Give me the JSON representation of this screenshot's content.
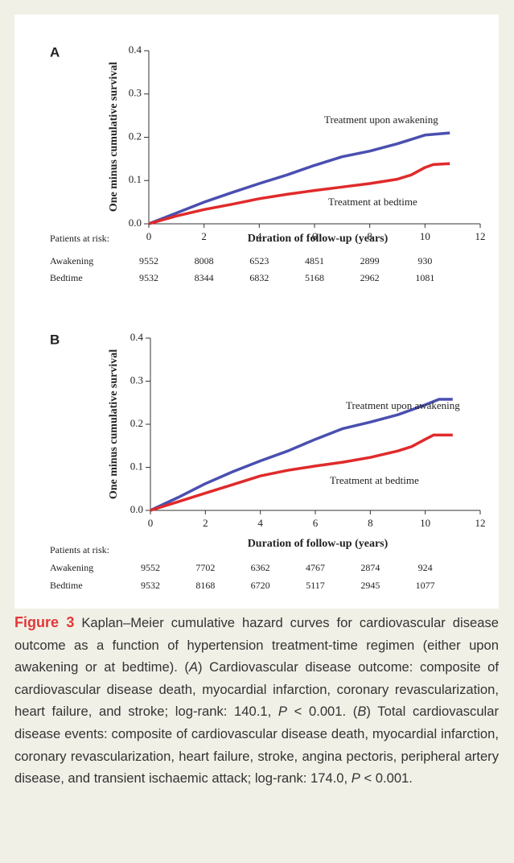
{
  "chart_data": [
    {
      "type": "line",
      "panel_label": "A",
      "y_label": "One minus cumulative survival",
      "x_label": "Duration of follow-up (years)",
      "xlim": [
        0,
        12
      ],
      "xticks": [
        0,
        2,
        4,
        6,
        8,
        10,
        12
      ],
      "ylim": [
        0,
        0.4
      ],
      "yticks": [
        {
          "value": 0,
          "label": "0.0"
        },
        0.1,
        0.2,
        0.3,
        0.4
      ],
      "series": [
        {
          "name": "Treatment upon awakening",
          "color": "#4a4fb0",
          "x": [
            0,
            1,
            2,
            3,
            4,
            5,
            6,
            7,
            8,
            9,
            10,
            10.9
          ],
          "values": [
            0,
            0.025,
            0.05,
            0.072,
            0.093,
            0.113,
            0.135,
            0.155,
            0.168,
            0.185,
            0.205,
            0.21
          ]
        },
        {
          "name": "Treatment at bedtime",
          "color": "#e02a2a",
          "x": [
            0,
            1,
            2,
            3,
            4,
            5,
            6,
            7,
            8,
            9,
            9.5,
            10,
            10.3,
            10.9
          ],
          "values": [
            0,
            0.018,
            0.033,
            0.045,
            0.058,
            0.068,
            0.077,
            0.085,
            0.093,
            0.103,
            0.113,
            0.13,
            0.137,
            0.139
          ]
        }
      ],
      "risk_table": {
        "title": "Patients at risk:",
        "rows": [
          {
            "label": "Awakening",
            "values": [
              9552,
              8008,
              6523,
              4851,
              2899,
              930
            ]
          },
          {
            "label": "Bedtime",
            "values": [
              9532,
              8344,
              6832,
              5168,
              2962,
              1081
            ]
          }
        ]
      }
    },
    {
      "type": "line",
      "panel_label": "B",
      "y_label": "One minus cumulative survival",
      "x_label": "Duration of follow-up (years)",
      "xlim": [
        0,
        12
      ],
      "xticks": [
        0,
        2,
        4,
        6,
        8,
        10,
        12
      ],
      "ylim": [
        0,
        0.4
      ],
      "yticks": [
        {
          "value": 0,
          "label": "0.0"
        },
        0.1,
        0.2,
        0.3,
        0.4
      ],
      "series": [
        {
          "name": "Treatment upon awakening",
          "color": "#4a4fb0",
          "x": [
            0,
            1,
            2,
            3,
            4,
            5,
            6,
            7,
            8,
            9,
            10,
            10.5,
            11
          ],
          "values": [
            0,
            0.03,
            0.062,
            0.09,
            0.115,
            0.138,
            0.165,
            0.19,
            0.205,
            0.222,
            0.245,
            0.258,
            0.258
          ]
        },
        {
          "name": "Treatment at bedtime",
          "color": "#e02a2a",
          "x": [
            0,
            1,
            2,
            3,
            4,
            5,
            6,
            7,
            8,
            9,
            9.5,
            10,
            10.3,
            11
          ],
          "values": [
            0,
            0.02,
            0.04,
            0.06,
            0.08,
            0.093,
            0.103,
            0.112,
            0.123,
            0.138,
            0.148,
            0.165,
            0.175,
            0.175
          ]
        }
      ],
      "risk_table": {
        "title": "Patients at risk:",
        "rows": [
          {
            "label": "Awakening",
            "values": [
              9552,
              7702,
              6362,
              4767,
              2874,
              924
            ]
          },
          {
            "label": "Bedtime",
            "values": [
              9532,
              8168,
              6720,
              5117,
              2945,
              1077
            ]
          }
        ]
      }
    }
  ],
  "caption": {
    "label": "Figure 3",
    "runs": [
      " Kaplan–Meier cumulative hazard curves for cardiovascular disease outcome as a function of hypertension treatment-time regimen (either upon awakening or at bedtime). (",
      "A",
      ") Cardiovascular disease outcome: composite of cardiovascular disease death, myocardial infarction, coronary revascularization, heart failure, and stroke; log-rank: 140.1, ",
      "P",
      " < 0.001. (",
      "B",
      ") Total cardiovascular disease events: composite of cardiovascular disease death, myocardial infarction, coronary revascularization, heart failure, stroke, angina pectoris, peripheral artery disease, and transient ischaemic attack; log-rank: 174.0, ",
      "P",
      " < 0.001."
    ]
  }
}
